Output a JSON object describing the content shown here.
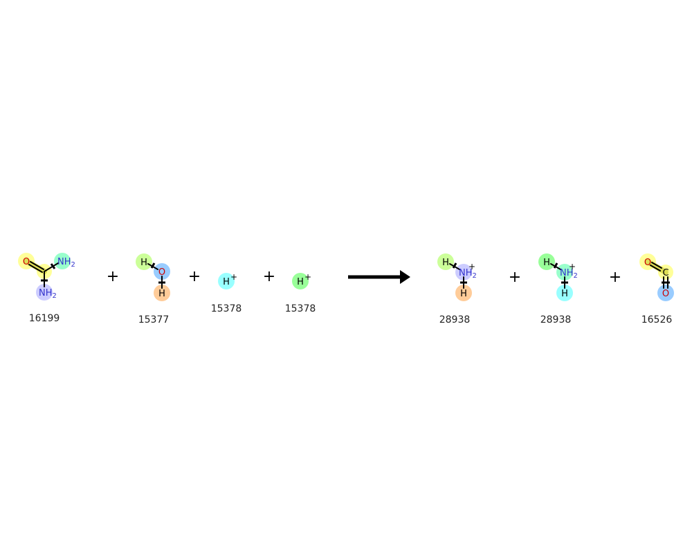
{
  "reaction": {
    "operator_plus": "+",
    "compounds": {
      "urea": {
        "id": "16199",
        "atoms": {
          "o": "O",
          "nh2_top": "NH",
          "nh2_top_sub": "2",
          "nh2_bottom": "NH",
          "nh2_bottom_sub": "2"
        }
      },
      "water": {
        "id": "15377",
        "atoms": {
          "h_top": "H",
          "o": "O",
          "h_bottom": "H"
        }
      },
      "proton_1": {
        "id": "15378",
        "atoms": {
          "h": "H",
          "charge": "+"
        }
      },
      "proton_2": {
        "id": "15378",
        "atoms": {
          "h": "H",
          "charge": "+"
        }
      },
      "ammonium_1": {
        "id": "28938",
        "atoms": {
          "h_top": "H",
          "n": "NH",
          "n_sub": "2",
          "charge": "+",
          "h_bottom": "H"
        }
      },
      "ammonium_2": {
        "id": "28938",
        "atoms": {
          "h_top": "H",
          "n": "NH",
          "n_sub": "2",
          "charge": "+",
          "h_bottom": "H"
        }
      },
      "carbon_dioxide": {
        "id": "16526",
        "atoms": {
          "o_top": "O",
          "c": "C",
          "o_bottom": "O"
        }
      }
    }
  },
  "colors": {
    "yellow": "#ffff99",
    "teal": "#99ffcc",
    "lavender": "#ccccff",
    "lime": "#ccff99",
    "blue": "#99ccff",
    "peach": "#ffcc99",
    "cyan": "#99ffff",
    "green": "#99ff99",
    "oxygen_text": "#cc0000",
    "nitrogen_text": "#3333cc",
    "bond": "#000000"
  }
}
